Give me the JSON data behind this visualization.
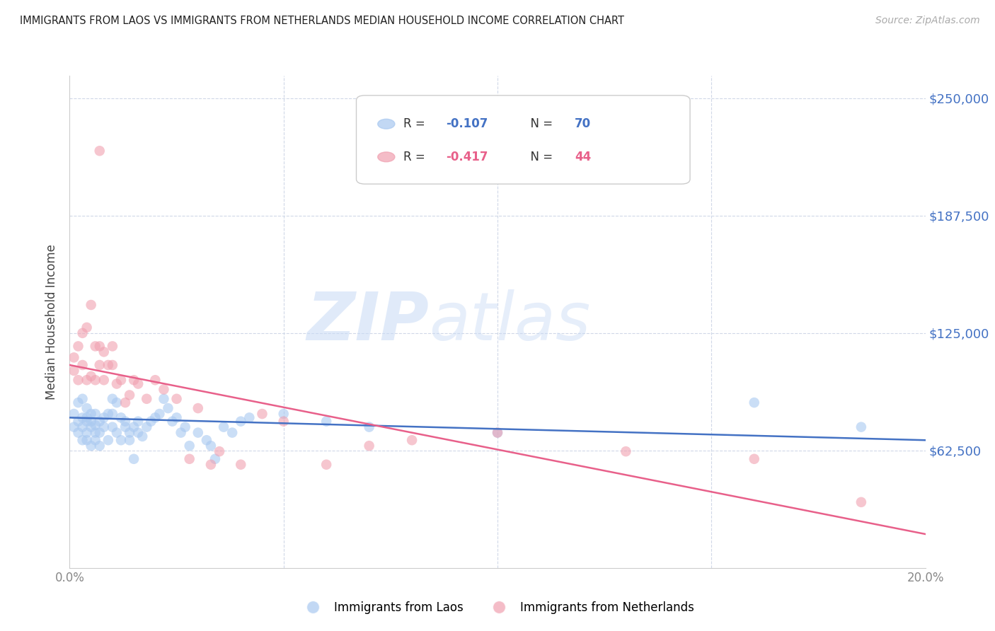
{
  "title": "IMMIGRANTS FROM LAOS VS IMMIGRANTS FROM NETHERLANDS MEDIAN HOUSEHOLD INCOME CORRELATION CHART",
  "source": "Source: ZipAtlas.com",
  "ylabel": "Median Household Income",
  "yticks": [
    0,
    62500,
    125000,
    187500,
    250000
  ],
  "xmin": 0.0,
  "xmax": 0.2,
  "ymin": 15000,
  "ymax": 262000,
  "watermark_zip": "ZIP",
  "watermark_atlas": "atlas",
  "laos_color": "#a8c8f0",
  "netherlands_color": "#f0a0b0",
  "laos_line_color": "#4472c4",
  "netherlands_line_color": "#e8608a",
  "grid_color": "#d0d8e8",
  "laos_line_y0": 80000,
  "laos_line_y1": 68000,
  "netherlands_line_y0": 108000,
  "netherlands_line_y1": 18000,
  "laos_x": [
    0.001,
    0.001,
    0.002,
    0.002,
    0.002,
    0.003,
    0.003,
    0.003,
    0.003,
    0.004,
    0.004,
    0.004,
    0.004,
    0.004,
    0.005,
    0.005,
    0.005,
    0.005,
    0.006,
    0.006,
    0.006,
    0.006,
    0.007,
    0.007,
    0.007,
    0.008,
    0.008,
    0.009,
    0.009,
    0.01,
    0.01,
    0.01,
    0.011,
    0.011,
    0.012,
    0.012,
    0.013,
    0.013,
    0.014,
    0.014,
    0.015,
    0.015,
    0.016,
    0.016,
    0.017,
    0.018,
    0.019,
    0.02,
    0.021,
    0.022,
    0.023,
    0.024,
    0.025,
    0.026,
    0.027,
    0.028,
    0.03,
    0.032,
    0.033,
    0.034,
    0.036,
    0.038,
    0.04,
    0.042,
    0.05,
    0.06,
    0.07,
    0.1,
    0.16,
    0.185
  ],
  "laos_y": [
    82000,
    75000,
    88000,
    72000,
    78000,
    80000,
    68000,
    90000,
    75000,
    72000,
    85000,
    78000,
    68000,
    80000,
    75000,
    82000,
    65000,
    78000,
    72000,
    76000,
    68000,
    82000,
    78000,
    65000,
    72000,
    80000,
    75000,
    82000,
    68000,
    90000,
    75000,
    82000,
    88000,
    72000,
    80000,
    68000,
    78000,
    75000,
    72000,
    68000,
    75000,
    58000,
    72000,
    78000,
    70000,
    75000,
    78000,
    80000,
    82000,
    90000,
    85000,
    78000,
    80000,
    72000,
    75000,
    65000,
    72000,
    68000,
    65000,
    58000,
    75000,
    72000,
    78000,
    80000,
    82000,
    78000,
    75000,
    72000,
    88000,
    75000
  ],
  "netherlands_x": [
    0.001,
    0.001,
    0.002,
    0.002,
    0.003,
    0.003,
    0.004,
    0.004,
    0.005,
    0.005,
    0.006,
    0.006,
    0.007,
    0.007,
    0.008,
    0.008,
    0.009,
    0.01,
    0.01,
    0.011,
    0.012,
    0.013,
    0.014,
    0.015,
    0.016,
    0.018,
    0.02,
    0.022,
    0.025,
    0.028,
    0.03,
    0.033,
    0.035,
    0.04,
    0.045,
    0.05,
    0.06,
    0.07,
    0.08,
    0.1,
    0.13,
    0.16,
    0.185,
    0.007
  ],
  "netherlands_y": [
    112000,
    105000,
    118000,
    100000,
    125000,
    108000,
    128000,
    100000,
    140000,
    102000,
    118000,
    100000,
    118000,
    108000,
    100000,
    115000,
    108000,
    118000,
    108000,
    98000,
    100000,
    88000,
    92000,
    100000,
    98000,
    90000,
    100000,
    95000,
    90000,
    58000,
    85000,
    55000,
    62000,
    55000,
    82000,
    78000,
    55000,
    65000,
    68000,
    72000,
    62000,
    58000,
    35000,
    222000
  ]
}
